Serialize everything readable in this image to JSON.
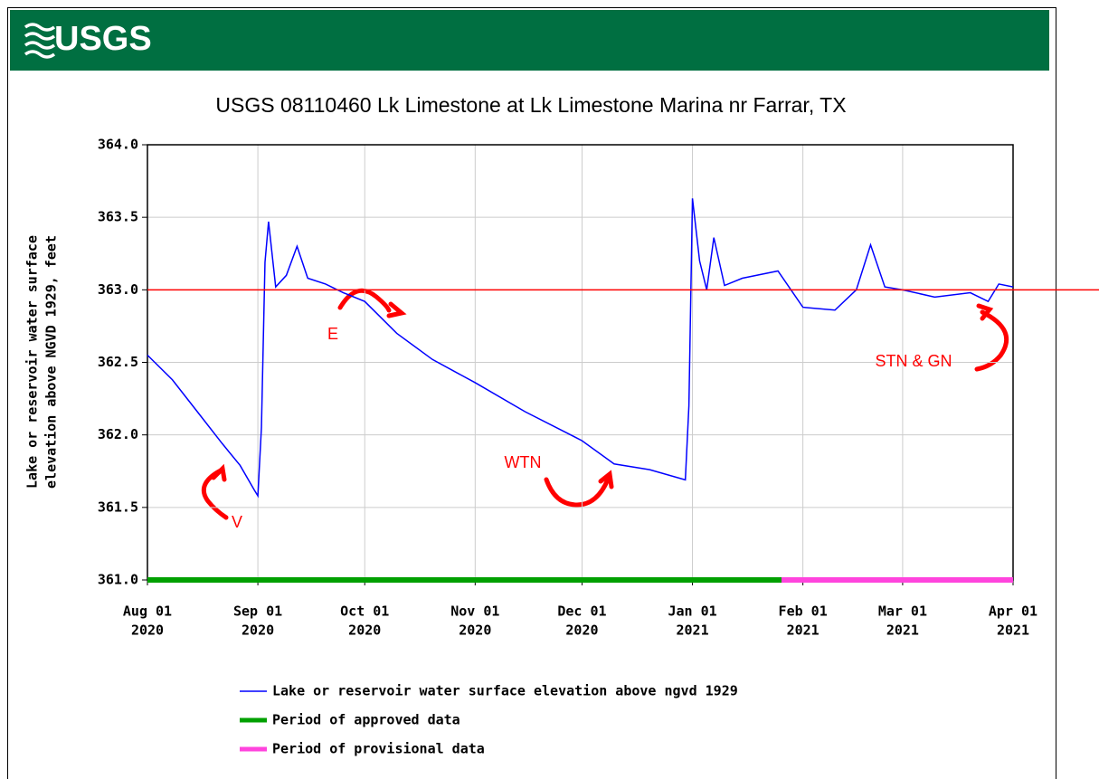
{
  "header": {
    "logo": "USGS"
  },
  "chart_data": {
    "type": "line",
    "title": "USGS 08110460 Lk Limestone at Lk Limestone Marina nr Farrar, TX",
    "ylabel": [
      "Lake or reservoir water surface",
      "elevation above NGVD 1929, feet"
    ],
    "x": [
      "2020-08-01",
      "2020-08-08",
      "2020-08-15",
      "2020-08-22",
      "2020-08-27",
      "2020-08-31",
      "2020-09-01",
      "2020-09-02",
      "2020-09-03",
      "2020-09-04",
      "2020-09-06",
      "2020-09-09",
      "2020-09-12",
      "2020-09-15",
      "2020-09-20",
      "2020-09-25",
      "2020-10-01",
      "2020-10-10",
      "2020-10-20",
      "2020-11-01",
      "2020-11-15",
      "2020-12-01",
      "2020-12-10",
      "2020-12-20",
      "2020-12-30",
      "2020-12-31",
      "2021-01-01",
      "2021-01-03",
      "2021-01-05",
      "2021-01-07",
      "2021-01-10",
      "2021-01-15",
      "2021-01-25",
      "2021-02-01",
      "2021-02-10",
      "2021-02-16",
      "2021-02-20",
      "2021-02-24",
      "2021-03-01",
      "2021-03-10",
      "2021-03-20",
      "2021-03-25",
      "2021-03-28",
      "2021-04-01"
    ],
    "series": [
      {
        "name": "Lake or reservoir water surface elevation above ngvd 1929",
        "color": "#0000ff",
        "values": [
          362.55,
          362.38,
          362.16,
          361.94,
          361.79,
          361.62,
          361.58,
          362.05,
          363.19,
          363.47,
          363.02,
          363.1,
          363.3,
          363.08,
          363.04,
          362.98,
          362.92,
          362.7,
          362.52,
          362.36,
          362.16,
          361.96,
          361.8,
          361.76,
          361.69,
          362.2,
          363.63,
          363.2,
          363.0,
          363.36,
          363.03,
          363.08,
          363.13,
          362.88,
          362.86,
          363.0,
          363.31,
          363.02,
          363.0,
          362.95,
          362.98,
          362.92,
          363.04,
          363.02
        ]
      }
    ],
    "periods": [
      {
        "name": "Period of approved data",
        "color": "#00a000",
        "start": "2020-08-01",
        "end": "2021-01-26"
      },
      {
        "name": "Period of provisional data",
        "color": "#ff44dd",
        "start": "2021-01-26",
        "end": "2021-04-01"
      }
    ],
    "xlim": [
      "2020-08-01",
      "2021-04-01"
    ],
    "xticks": [
      {
        "value": "2020-08-01",
        "label": [
          "Aug 01",
          "2020"
        ]
      },
      {
        "value": "2020-09-01",
        "label": [
          "Sep 01",
          "2020"
        ]
      },
      {
        "value": "2020-10-01",
        "label": [
          "Oct 01",
          "2020"
        ]
      },
      {
        "value": "2020-11-01",
        "label": [
          "Nov 01",
          "2020"
        ]
      },
      {
        "value": "2020-12-01",
        "label": [
          "Dec 01",
          "2020"
        ]
      },
      {
        "value": "2021-01-01",
        "label": [
          "Jan 01",
          "2021"
        ]
      },
      {
        "value": "2021-02-01",
        "label": [
          "Feb 01",
          "2021"
        ]
      },
      {
        "value": "2021-03-01",
        "label": [
          "Mar 01",
          "2021"
        ]
      },
      {
        "value": "2021-04-01",
        "label": [
          "Apr 01",
          "2021"
        ]
      }
    ],
    "ylim": [
      361,
      364
    ],
    "yticks": [
      {
        "value": 361,
        "label": "361.0"
      },
      {
        "value": 361.5,
        "label": "361.5"
      },
      {
        "value": 362,
        "label": "362.0"
      },
      {
        "value": 362.5,
        "label": "362.5"
      },
      {
        "value": 363,
        "label": "363.0"
      },
      {
        "value": 363.5,
        "label": "363.5"
      },
      {
        "value": 364,
        "label": "364.0"
      }
    ],
    "grid": true,
    "reference_line": {
      "value": 363,
      "color": "#ff0000"
    },
    "annotations": [
      "E",
      "V",
      "WTN",
      "STN & GN"
    ]
  }
}
